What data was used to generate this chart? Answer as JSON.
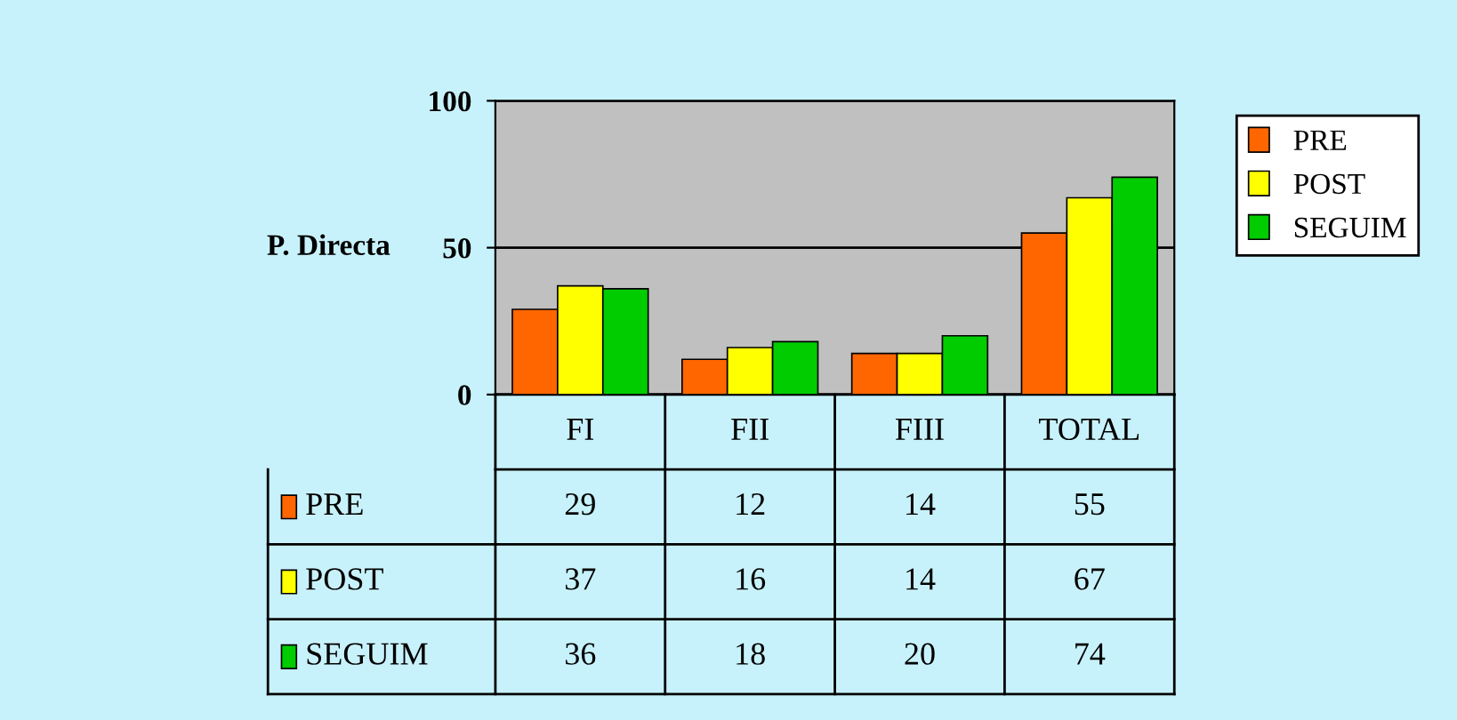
{
  "chart_data": {
    "type": "bar",
    "ylabel": "P. Directa",
    "categories": [
      "FI",
      "FII",
      "FIII",
      "TOTAL"
    ],
    "series": [
      {
        "name": "PRE",
        "color": "#ff6600",
        "values": [
          29,
          12,
          14,
          55
        ]
      },
      {
        "name": "POST",
        "color": "#ffff00",
        "values": [
          37,
          16,
          14,
          67
        ]
      },
      {
        "name": "SEGUIM",
        "color": "#00cc00",
        "values": [
          36,
          18,
          20,
          74
        ]
      }
    ],
    "ylim": [
      0,
      100
    ],
    "yticks": [
      0,
      50,
      100
    ],
    "grid": "y",
    "legend": "right",
    "data_labels": true
  }
}
